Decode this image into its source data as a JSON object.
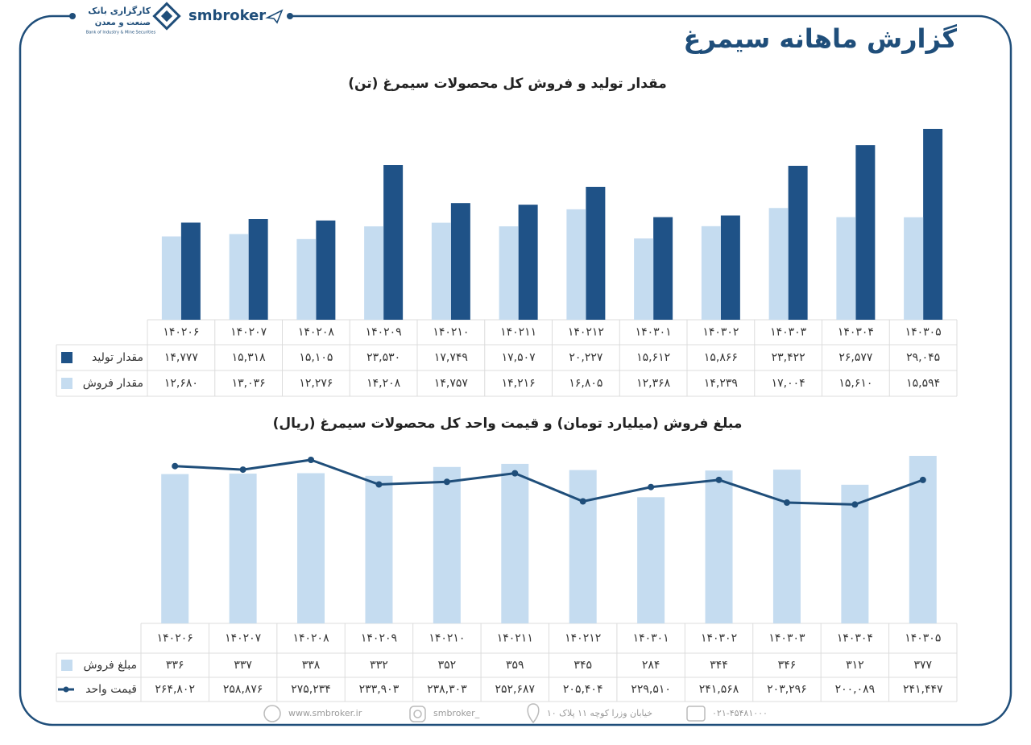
{
  "header": {
    "title": "گزارش ماهانه سیمرغ",
    "brand": "smbroker",
    "bank_name": "کارگزاری بانک",
    "bank_name_2": "صنعت و معدن",
    "bank_subtitle": "Bank of Industry & Mine Securities"
  },
  "footer": {
    "website": "www.smbroker.ir",
    "instagram": "smbroker_",
    "address": "خیابان وزرا کوچه ۱۱ پلاک ۱۰",
    "phone": "۰۲۱-۴۵۴۸۱۰۰۰"
  },
  "chart_data": [
    {
      "type": "bar",
      "title": "مقدار تولید و فروش کل محصولات سیمرغ (تن)",
      "categories": [
        "۱۴۰۲۰۶",
        "۱۴۰۲۰۷",
        "۱۴۰۲۰۸",
        "۱۴۰۲۰۹",
        "۱۴۰۲۱۰",
        "۱۴۰۲۱۱",
        "۱۴۰۲۱۲",
        "۱۴۰۳۰۱",
        "۱۴۰۳۰۲",
        "۱۴۰۳۰۳",
        "۱۴۰۳۰۴",
        "۱۴۰۳۰۵"
      ],
      "series": [
        {
          "name": "مقدار تولید",
          "color": "#1f5287",
          "values": [
            14777,
            15318,
            15105,
            23530,
            17749,
            17507,
            20227,
            15612,
            15866,
            23422,
            26577,
            29045
          ],
          "value_labels": [
            "۱۴,۷۷۷",
            "۱۵,۳۱۸",
            "۱۵,۱۰۵",
            "۲۳,۵۳۰",
            "۱۷,۷۴۹",
            "۱۷,۵۰۷",
            "۲۰,۲۲۷",
            "۱۵,۶۱۲",
            "۱۵,۸۶۶",
            "۲۳,۴۲۲",
            "۲۶,۵۷۷",
            "۲۹,۰۴۵"
          ]
        },
        {
          "name": "مقدار فروش",
          "color": "#c5dcf0",
          "values": [
            12680,
            13036,
            12276,
            14208,
            14757,
            14216,
            16805,
            12368,
            14239,
            17004,
            15610,
            15594
          ],
          "value_labels": [
            "۱۲,۶۸۰",
            "۱۳,۰۳۶",
            "۱۲,۲۷۶",
            "۱۴,۲۰۸",
            "۱۴,۷۵۷",
            "۱۴,۲۱۶",
            "۱۶,۸۰۵",
            "۱۲,۳۶۸",
            "۱۴,۲۳۹",
            "۱۷,۰۰۴",
            "۱۵,۶۱۰",
            "۱۵,۵۹۴"
          ]
        }
      ]
    },
    {
      "type": "bar",
      "title": "مبلغ فروش (میلیارد تومان) و قیمت واحد کل محصولات سیمرغ (ریال)",
      "categories": [
        "۱۴۰۲۰۶",
        "۱۴۰۲۰۷",
        "۱۴۰۲۰۸",
        "۱۴۰۲۰۹",
        "۱۴۰۲۱۰",
        "۱۴۰۲۱۱",
        "۱۴۰۲۱۲",
        "۱۴۰۳۰۱",
        "۱۴۰۳۰۲",
        "۱۴۰۳۰۳",
        "۱۴۰۳۰۴",
        "۱۴۰۳۰۵"
      ],
      "series": [
        {
          "name": "مبلغ فروش",
          "type": "bar",
          "color": "#c5dcf0",
          "values": [
            336,
            337,
            338,
            332,
            352,
            359,
            345,
            284,
            344,
            346,
            312,
            377
          ],
          "value_labels": [
            "۳۳۶",
            "۳۳۷",
            "۳۳۸",
            "۳۳۲",
            "۳۵۲",
            "۳۵۹",
            "۳۴۵",
            "۲۸۴",
            "۳۴۴",
            "۳۴۶",
            "۳۱۲",
            "۳۷۷"
          ]
        },
        {
          "name": "قیمت واحد",
          "type": "line",
          "axis": "y2",
          "color": "#1f4e7a",
          "values": [
            264802,
            258876,
            275234,
            233903,
            238303,
            252687,
            205404,
            229510,
            241568,
            203296,
            200089,
            241447
          ],
          "value_labels": [
            "۲۶۴,۸۰۲",
            "۲۵۸,۸۷۶",
            "۲۷۵,۲۳۴",
            "۲۳۳,۹۰۳",
            "۲۳۸,۳۰۳",
            "۲۵۲,۶۸۷",
            "۲۰۵,۴۰۴",
            "۲۲۹,۵۱۰",
            "۲۴۱,۵۶۸",
            "۲۰۳,۲۹۶",
            "۲۰۰,۰۸۹",
            "۲۴۱,۴۴۷"
          ]
        }
      ]
    }
  ]
}
